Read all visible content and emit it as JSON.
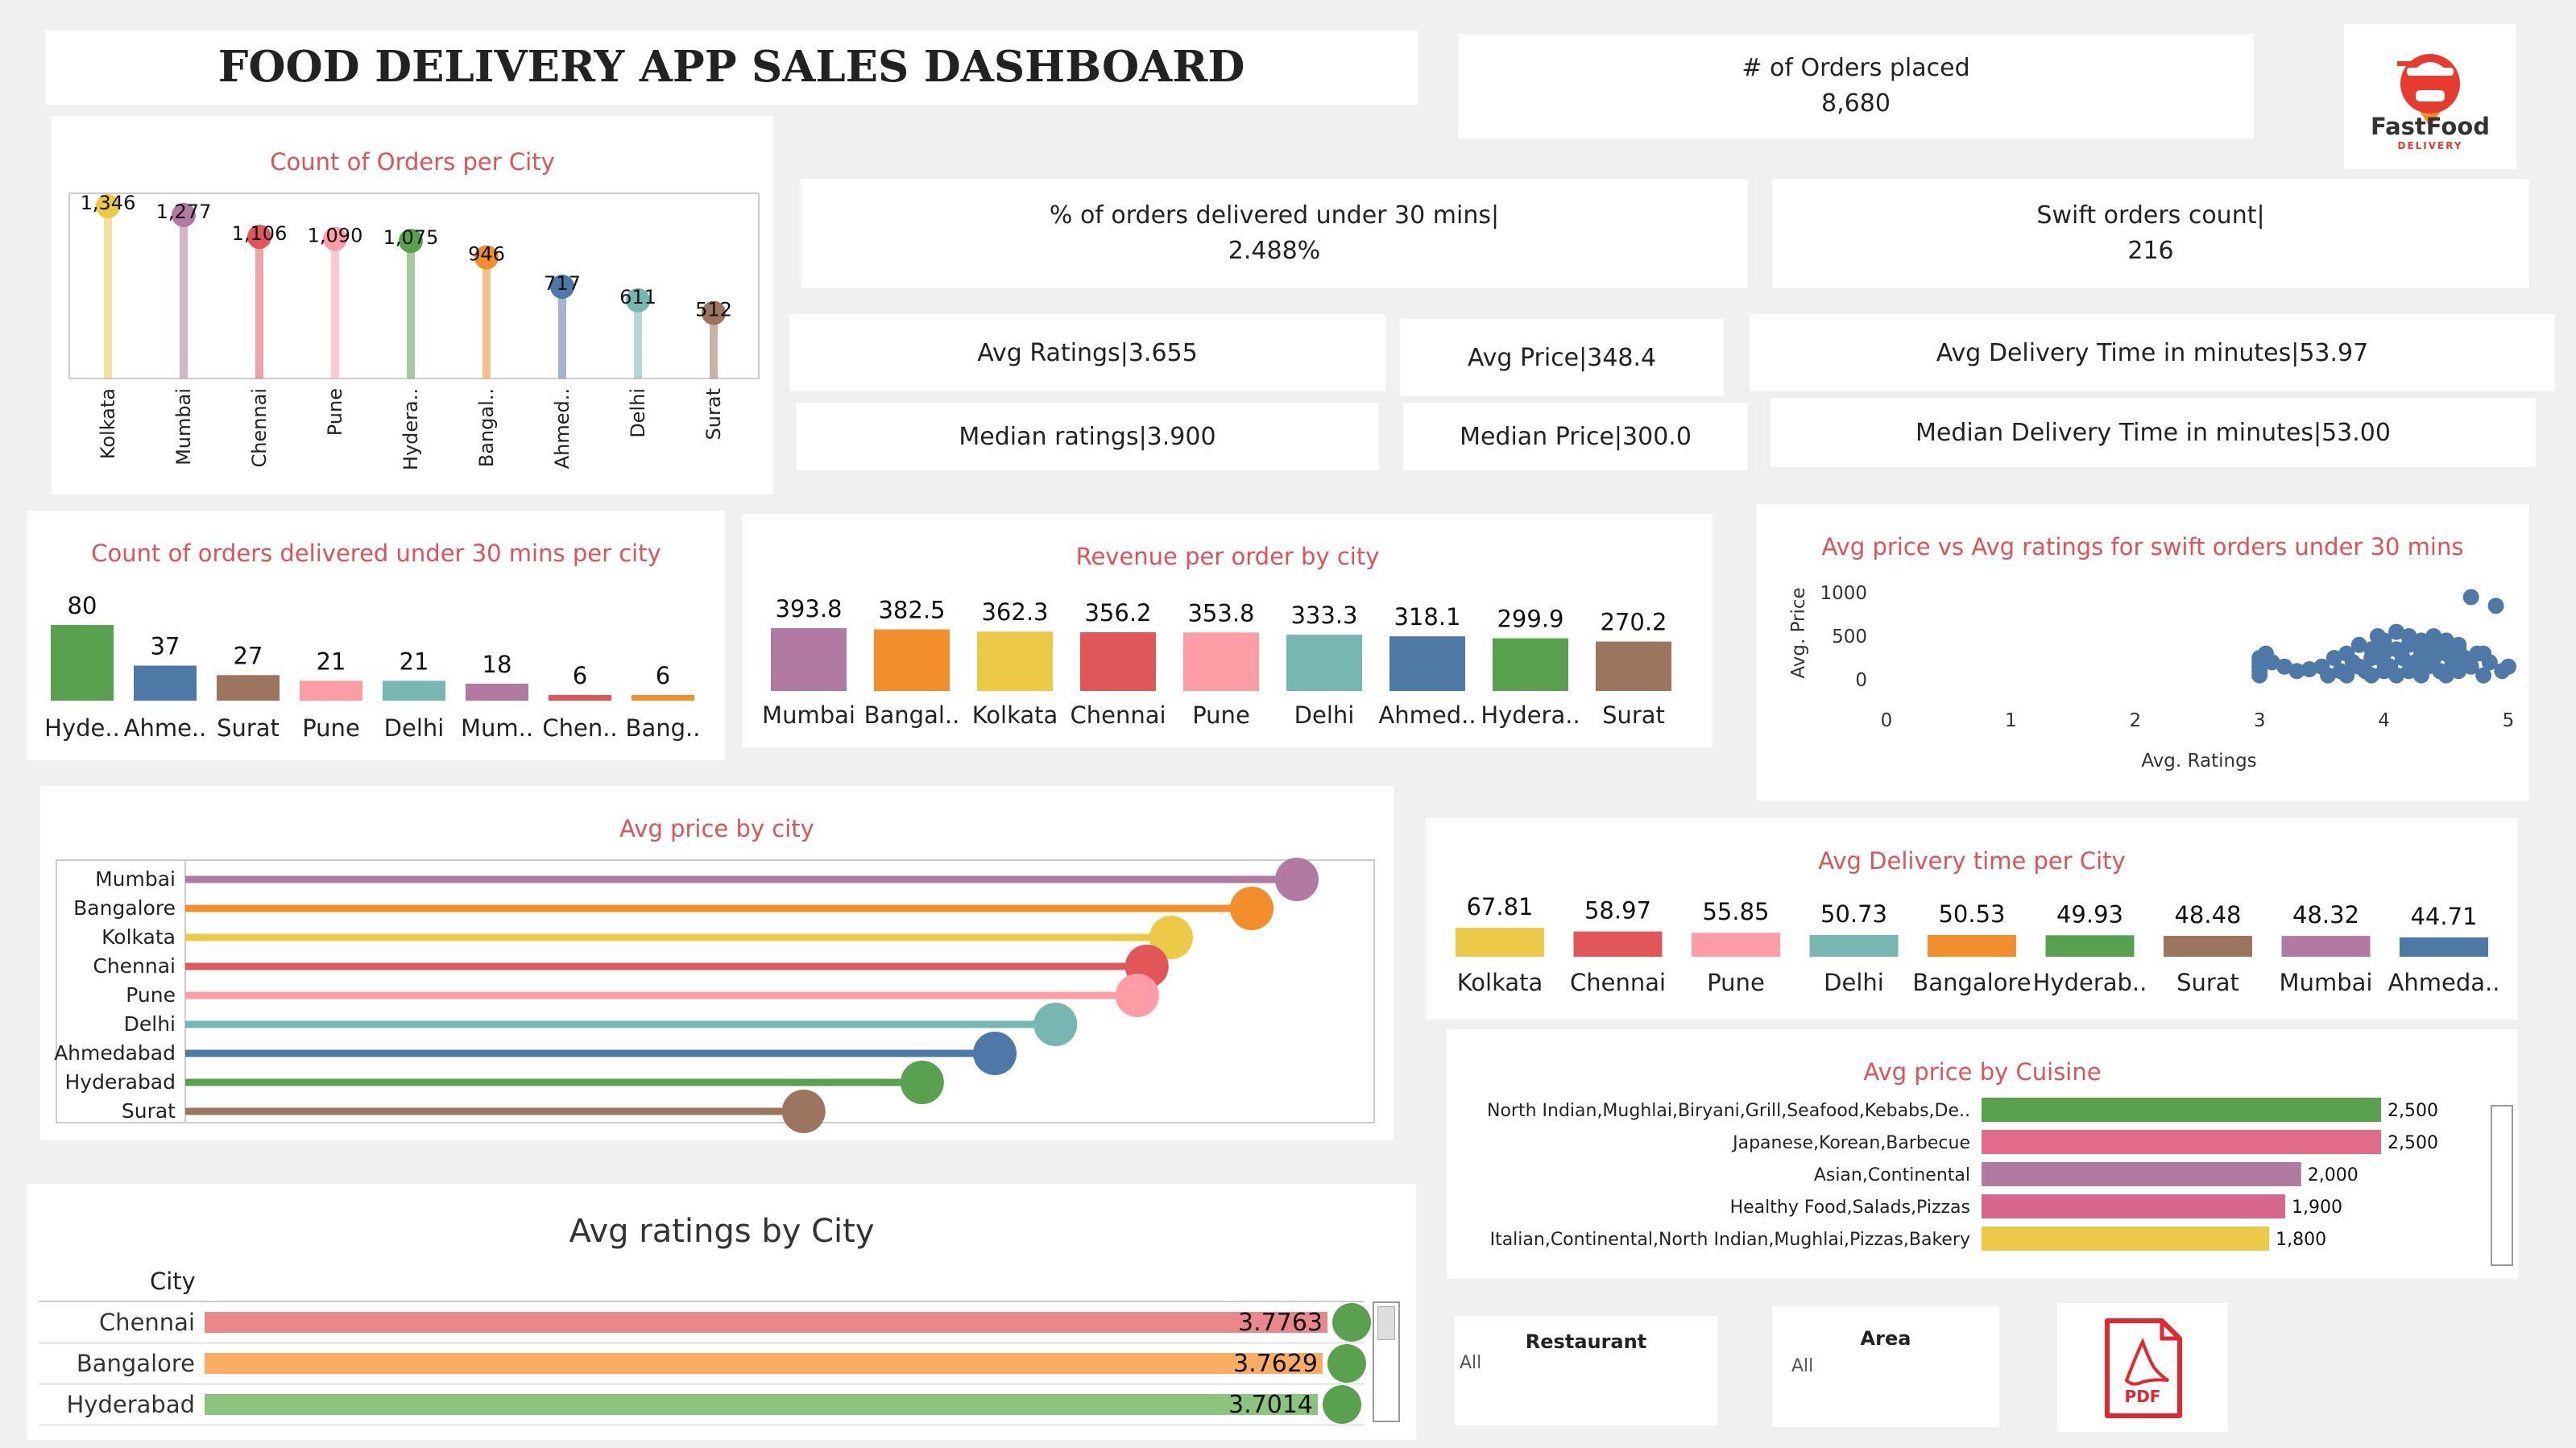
{
  "header": {
    "title": "FOOD DELIVERY APP SALES DASHBOARD"
  },
  "logo": {
    "brand": "FastFood",
    "sub": "DELIVERY"
  },
  "kpis": {
    "orders_label": "# of Orders placed",
    "orders_value": "8,680",
    "pct30_label": "% of orders delivered under 30 mins|",
    "pct30_value": "2.488%",
    "swift_label": "Swift orders count|",
    "swift_value": "216",
    "avg_ratings": "Avg Ratings|3.655",
    "avg_price": "Avg Price|348.4",
    "avg_delivery": "Avg Delivery Time in minutes|53.97",
    "median_ratings": "Median ratings|3.900",
    "median_price": "Median Price|300.0",
    "median_delivery": "Median  Delivery Time in minutes|53.00"
  },
  "colors": {
    "yellow": "#edc948",
    "purple": "#b07aa1",
    "red": "#e15759",
    "pink": "#ff9da7",
    "green": "#59a14f",
    "orange": "#f28e2b",
    "blue": "#4e79a7",
    "teal": "#76b7b2",
    "brown": "#9c755f",
    "title": "#e0525a"
  },
  "orders_per_city": {
    "title": "Count of Orders per City",
    "chart_data": {
      "type": "lollipop",
      "categories": [
        "Kolkata",
        "Mumbai",
        "Chennai",
        "Pune",
        "Hydera..",
        "Bangal..",
        "Ahmed..",
        "Delhi",
        "Surat"
      ],
      "values": [
        1346,
        1277,
        1106,
        1090,
        1075,
        946,
        717,
        611,
        512
      ],
      "labels": [
        "1,346",
        "1,277",
        "1,106",
        "1,090",
        "1,075",
        "946",
        "717",
        "611",
        "512"
      ],
      "colors": [
        "yellow",
        "purple",
        "red",
        "pink",
        "green",
        "orange",
        "blue",
        "teal",
        "brown"
      ]
    }
  },
  "under30_per_city": {
    "title": "Count of orders delivered under 30 mins per city",
    "chart_data": {
      "type": "bar",
      "categories": [
        "Hyde..",
        "Ahme..",
        "Surat",
        "Pune",
        "Delhi",
        "Mum..",
        "Chen..",
        "Bang.."
      ],
      "values": [
        80,
        37,
        27,
        21,
        21,
        18,
        6,
        6
      ],
      "colors": [
        "green",
        "blue",
        "brown",
        "pink",
        "teal",
        "purple",
        "red",
        "orange"
      ]
    }
  },
  "revenue_per_order": {
    "title": "Revenue per order by city",
    "chart_data": {
      "type": "bar",
      "categories": [
        "Mumbai",
        "Bangal..",
        "Kolkata",
        "Chennai",
        "Pune",
        "Delhi",
        "Ahmed..",
        "Hydera..",
        "Surat"
      ],
      "values": [
        393.8,
        382.5,
        362.3,
        356.2,
        353.8,
        333.3,
        318.1,
        299.9,
        270.2
      ],
      "colors": [
        "purple",
        "orange",
        "yellow",
        "red",
        "pink",
        "teal",
        "blue",
        "green",
        "brown"
      ]
    }
  },
  "scatter": {
    "title": "Avg price vs Avg ratings for swift orders under 30 mins",
    "chart_data": {
      "type": "scatter",
      "xlabel": "Avg. Ratings",
      "ylabel": "Avg. Price",
      "xlim": [
        0,
        5
      ],
      "ylim": [
        0,
        1000
      ],
      "xticks": [
        "0",
        "1",
        "2",
        "3",
        "4",
        "5"
      ],
      "yticks": [
        "1000",
        "500",
        "0"
      ],
      "points": [
        [
          3.0,
          50
        ],
        [
          3.0,
          100
        ],
        [
          3.0,
          150
        ],
        [
          3.0,
          200
        ],
        [
          3.0,
          250
        ],
        [
          3.05,
          300
        ],
        [
          3.1,
          200
        ],
        [
          3.2,
          150
        ],
        [
          3.3,
          100
        ],
        [
          3.4,
          120
        ],
        [
          3.5,
          150
        ],
        [
          3.55,
          50
        ],
        [
          3.6,
          250
        ],
        [
          3.65,
          100
        ],
        [
          3.7,
          300
        ],
        [
          3.7,
          50
        ],
        [
          3.75,
          200
        ],
        [
          3.8,
          150
        ],
        [
          3.8,
          400
        ],
        [
          3.85,
          100
        ],
        [
          3.9,
          250
        ],
        [
          3.9,
          50
        ],
        [
          3.95,
          500
        ],
        [
          4.0,
          300
        ],
        [
          4.0,
          100
        ],
        [
          4.0,
          200
        ],
        [
          4.0,
          450
        ],
        [
          4.05,
          150
        ],
        [
          4.1,
          350
        ],
        [
          4.1,
          50
        ],
        [
          4.15,
          250
        ],
        [
          4.2,
          400
        ],
        [
          4.2,
          100
        ],
        [
          4.25,
          200
        ],
        [
          4.3,
          300
        ],
        [
          4.3,
          50
        ],
        [
          4.35,
          150
        ],
        [
          4.4,
          400
        ],
        [
          4.4,
          250
        ],
        [
          4.45,
          100
        ],
        [
          4.5,
          300
        ],
        [
          4.5,
          50
        ],
        [
          4.55,
          200
        ],
        [
          4.6,
          350
        ],
        [
          4.6,
          100
        ],
        [
          4.65,
          250
        ],
        [
          4.7,
          150
        ],
        [
          4.7,
          950
        ],
        [
          4.75,
          300
        ],
        [
          4.8,
          50
        ],
        [
          4.85,
          200
        ],
        [
          4.9,
          850
        ],
        [
          4.95,
          100
        ],
        [
          5.0,
          150
        ],
        [
          4.2,
          500
        ],
        [
          4.1,
          550
        ],
        [
          4.3,
          450
        ],
        [
          3.9,
          350
        ],
        [
          4.4,
          500
        ],
        [
          4.5,
          450
        ],
        [
          4.6,
          400
        ],
        [
          4.8,
          300
        ]
      ]
    }
  },
  "avg_price_city": {
    "title": "Avg price by city",
    "chart_data": {
      "type": "lollipop-h",
      "categories": [
        "Mumbai",
        "Bangalore",
        "Kolkata",
        "Chennai",
        "Pune",
        "Delhi",
        "Ahmedabad",
        "Hyderabad",
        "Surat"
      ],
      "values": [
        393.8,
        382.5,
        362.3,
        356.2,
        353.8,
        333.3,
        318.1,
        299.9,
        270.2
      ],
      "colors": [
        "purple",
        "orange",
        "yellow",
        "red",
        "pink",
        "teal",
        "blue",
        "green",
        "brown"
      ]
    }
  },
  "avg_delivery_city": {
    "title": "Avg Delivery time per City",
    "chart_data": {
      "type": "bar",
      "categories": [
        "Kolkata",
        "Chennai",
        "Pune",
        "Delhi",
        "Bangalore",
        "Hyderab..",
        "Surat",
        "Mumbai",
        "Ahmeda.."
      ],
      "values": [
        67.81,
        58.97,
        55.85,
        50.73,
        50.53,
        49.93,
        48.48,
        48.32,
        44.71
      ],
      "labels": [
        "67.81",
        "58.97",
        "55.85",
        "50.73",
        "50.53",
        "49.93",
        "48.48",
        "48.32",
        "44.71"
      ],
      "colors": [
        "yellow",
        "red",
        "pink",
        "teal",
        "orange",
        "green",
        "brown",
        "purple",
        "blue"
      ]
    }
  },
  "avg_price_cuisine": {
    "title": "Avg price by Cuisine",
    "chart_data": {
      "type": "bar-h",
      "categories": [
        "North Indian,Mughlai,Biryani,Grill,Seafood,Kebabs,De..",
        "Japanese,Korean,Barbecue",
        "Asian,Continental",
        "Healthy Food,Salads,Pizzas",
        "Italian,Continental,North Indian,Mughlai,Pizzas,Bakery"
      ],
      "values": [
        2500,
        2500,
        2000,
        1900,
        1800
      ],
      "labels": [
        "2,500",
        "2,500",
        "2,000",
        "1,900",
        "1,800"
      ],
      "colors": [
        "green",
        "pinkbar",
        "purple",
        "rose",
        "yellow"
      ]
    }
  },
  "avg_ratings_city": {
    "title": "Avg ratings by City",
    "column_header": "City",
    "chart_data": {
      "type": "bar-h",
      "categories": [
        "Chennai",
        "Bangalore",
        "Hyderabad"
      ],
      "values": [
        3.7763,
        3.7629,
        3.7014
      ],
      "labels": [
        "3.7763",
        "3.7629",
        "3.7014"
      ]
    }
  },
  "filters": {
    "restaurant": {
      "label": "Restaurant",
      "value": "All"
    },
    "area": {
      "label": "Area",
      "value": "All"
    },
    "pdf": "PDF"
  }
}
